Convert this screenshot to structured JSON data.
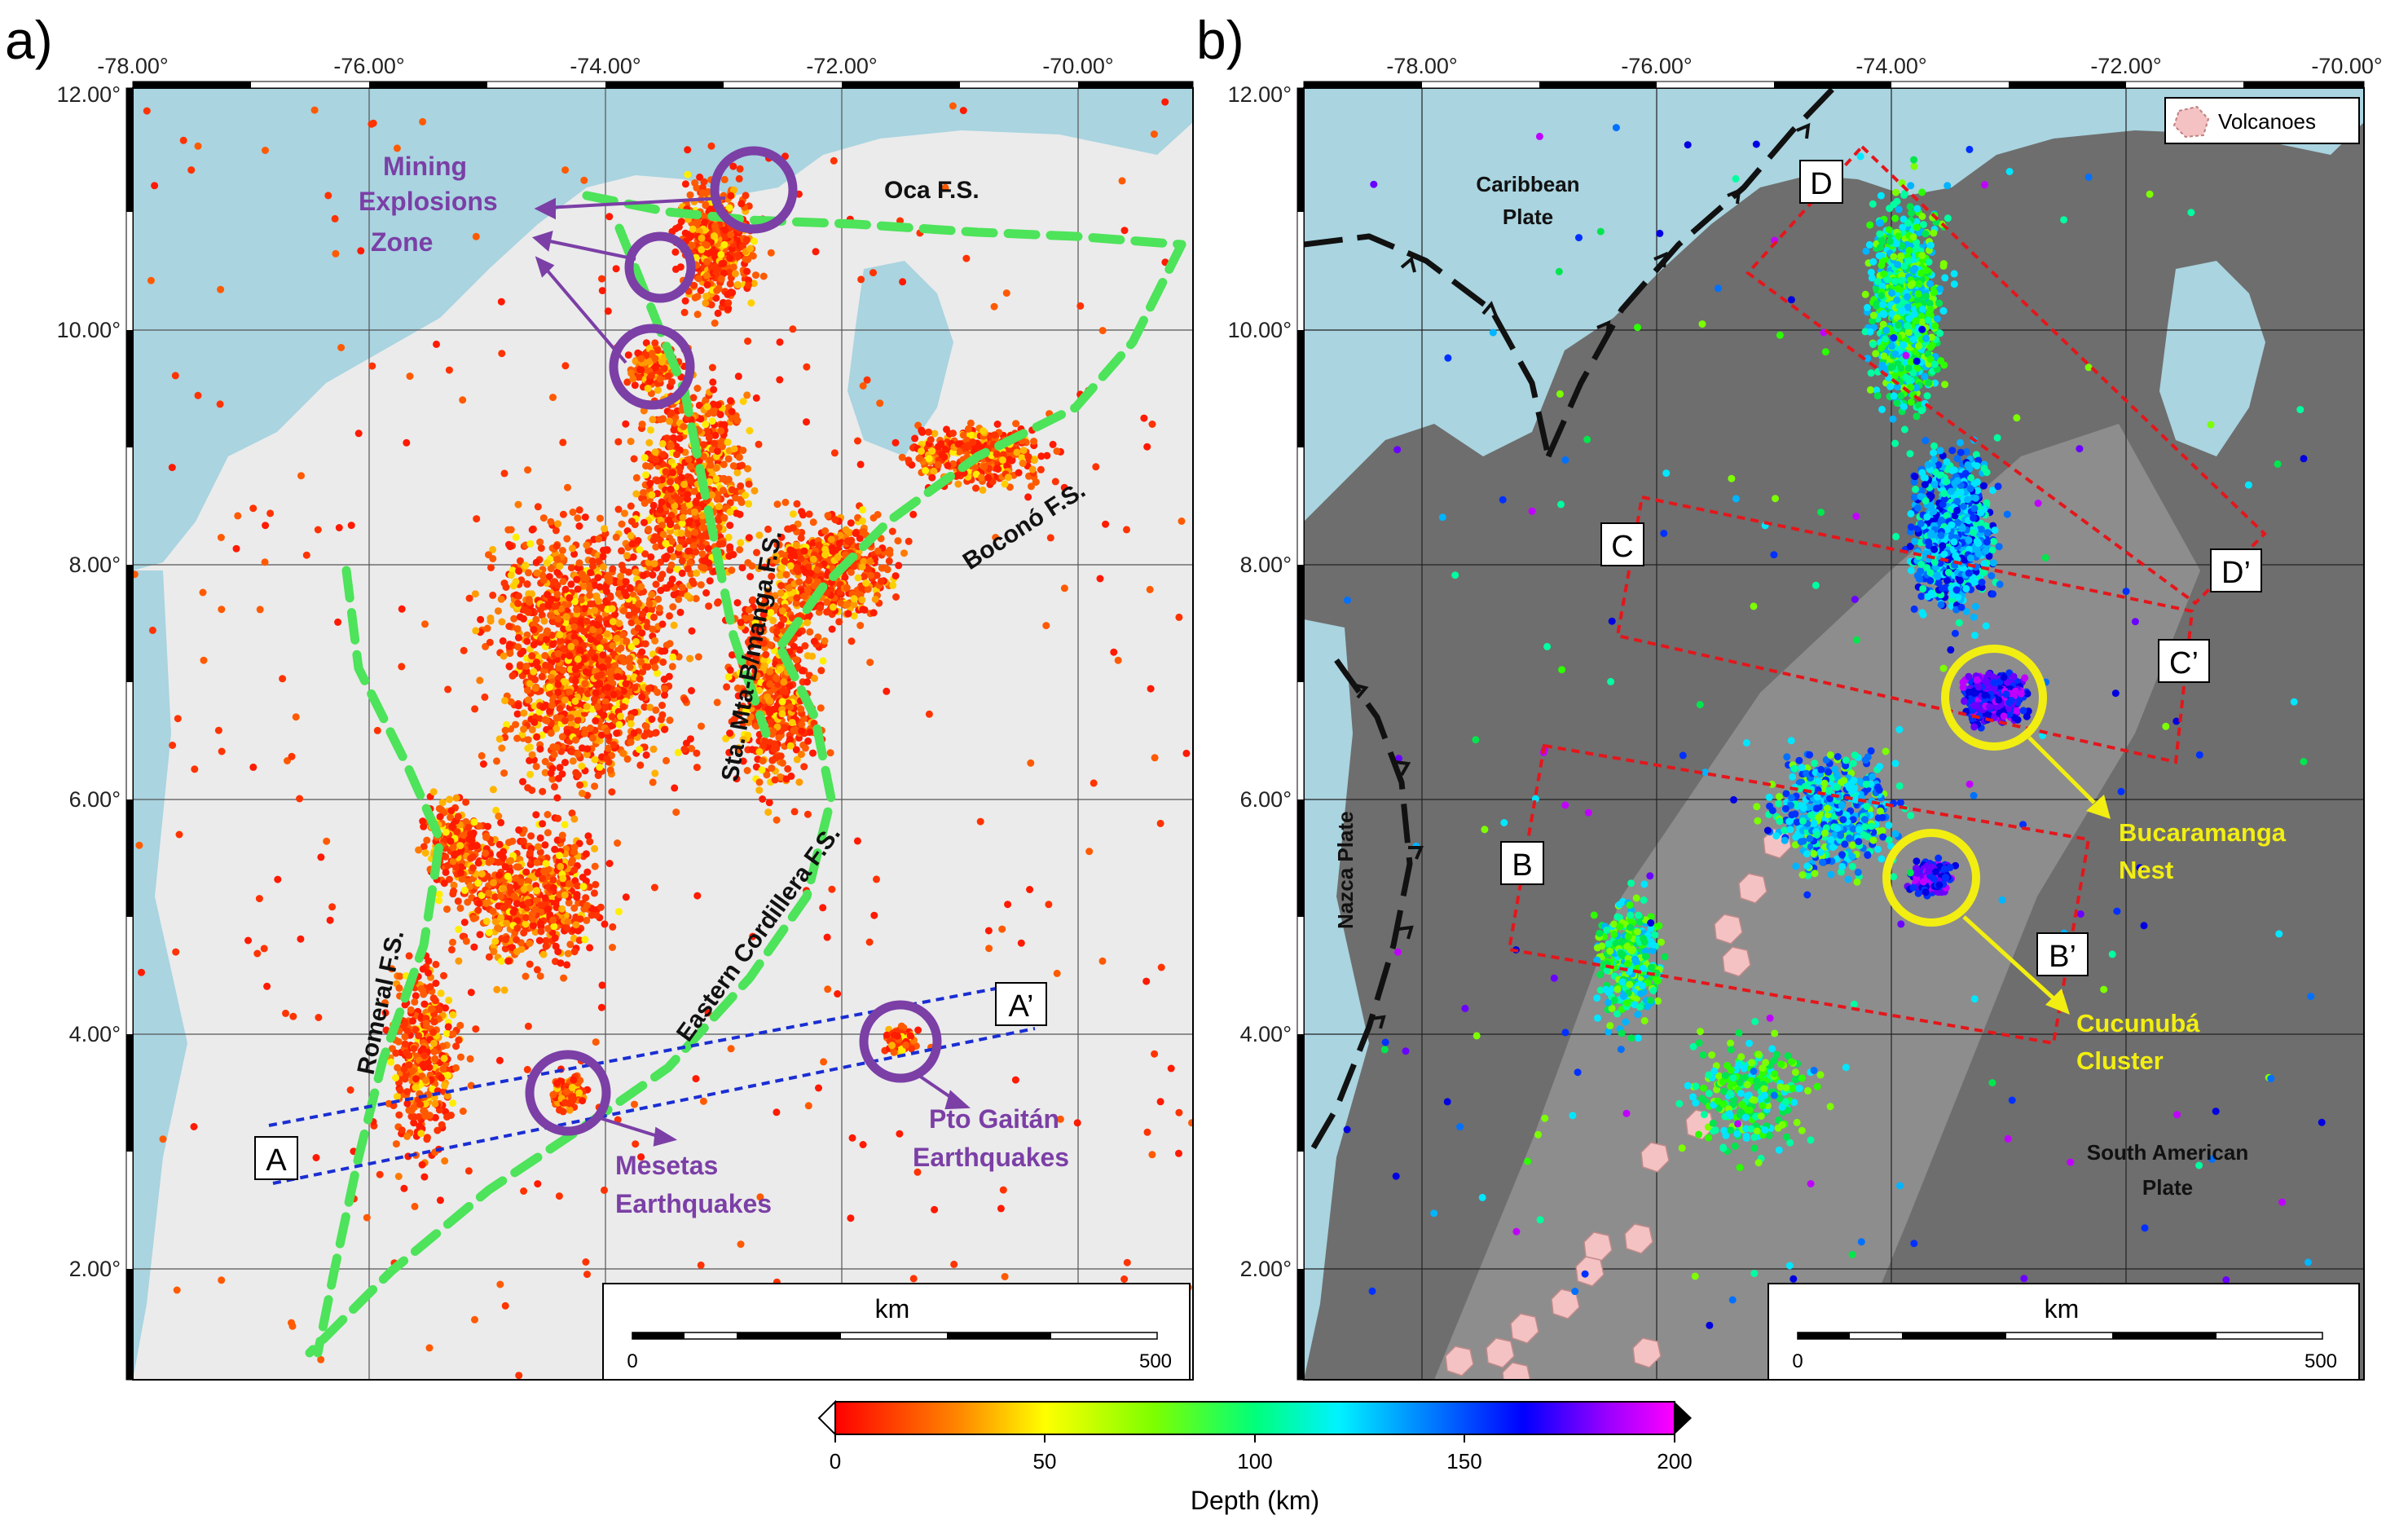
{
  "panels": [
    {
      "letter": "a)",
      "lon_ticks": [
        "-78.00°",
        "-76.00°",
        "-74.00°",
        "-72.00°",
        "-70.00°"
      ],
      "lat_ticks": [
        "12.00°",
        "10.00°",
        "8.00°",
        "6.00°",
        "4.00°",
        "2.00°"
      ],
      "scale": {
        "title": "km",
        "min": "0",
        "max": "500"
      },
      "fault_labels": [
        "Oca F.S.",
        "Boconó F.S.",
        "Sta. Mta-B/manga F.S.",
        "Eastern Cordillera F.S.",
        "Romeral F.S."
      ],
      "section_labels": [
        "A",
        "A’"
      ],
      "annotations": {
        "mining": [
          "Mining",
          "Explosions",
          "Zone"
        ],
        "mesetas": [
          "Mesetas",
          "Earthquakes"
        ],
        "gaitan": [
          "Pto Gaitán",
          "Earthquakes"
        ]
      }
    },
    {
      "letter": "b)",
      "lon_ticks": [
        "-78.00°",
        "-76.00°",
        "-74.00°",
        "-72.00°",
        "-70.00°"
      ],
      "lat_ticks": [
        "12.00°",
        "10.00°",
        "8.00°",
        "6.00°",
        "4.00°",
        "2.00°"
      ],
      "scale": {
        "title": "km",
        "min": "0",
        "max": "500"
      },
      "legend": "Volcanoes",
      "plates": {
        "caribbean": [
          "Caribbean",
          "Plate"
        ],
        "nazca": "Nazca Plate",
        "south_american": [
          "South American",
          "Plate"
        ]
      },
      "section_labels": [
        "B",
        "B’",
        "C",
        "C’",
        "D",
        "D’"
      ],
      "annotations": {
        "bucaramanga": [
          "Bucaramanga",
          "Nest"
        ],
        "cucunuba": [
          "Cucunubá",
          "Cluster"
        ]
      }
    }
  ],
  "colorbar": {
    "ticks": [
      "0",
      "50",
      "100",
      "150",
      "200"
    ],
    "label": "Depth (km)"
  },
  "colors": {
    "sea": "#a9d4e0",
    "annotation_purple": "#7b3fa6",
    "fault_green": "#4de35a",
    "highlight_yellow": "#f2ee12",
    "section_blue": "#1a2ed4",
    "section_red": "#e4161b",
    "volcano_pink": "#f4c2c2"
  }
}
